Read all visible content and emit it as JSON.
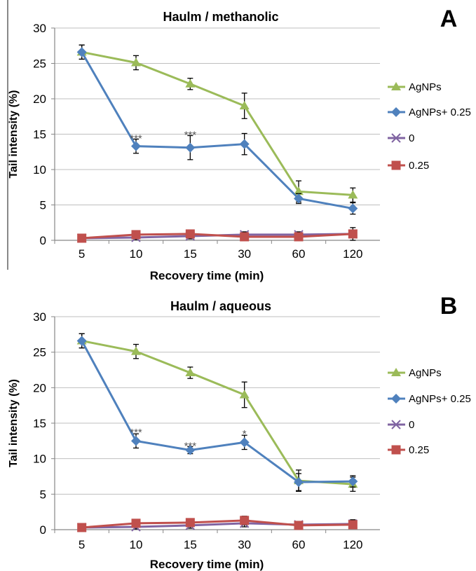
{
  "chart_data": [
    {
      "type": "line",
      "panel_letter": "A",
      "title": "Haulm / methanolic",
      "xlabel": "Recovery time (min)",
      "ylabel": "Tail intensity (%)",
      "categories": [
        "5",
        "10",
        "15",
        "30",
        "60",
        "120"
      ],
      "yticks": [
        "0",
        "5",
        "10",
        "15",
        "20",
        "25",
        "30"
      ],
      "ylim": [
        0,
        30
      ],
      "grid": true,
      "legend_position": "right",
      "series": [
        {
          "name": "AgNPs",
          "color": "#9bbb59",
          "marker": "triangle",
          "values": [
            26.6,
            25.1,
            22.1,
            19.0,
            6.9,
            6.4
          ],
          "errors": [
            1.0,
            1.0,
            0.8,
            1.8,
            1.5,
            1.0
          ]
        },
        {
          "name": "AgNPs+ 0.25",
          "color": "#4f81bd",
          "marker": "diamond",
          "values": [
            26.6,
            13.3,
            13.1,
            13.6,
            5.9,
            4.5
          ],
          "errors": [
            1.0,
            1.0,
            1.7,
            1.5,
            0.7,
            0.8
          ]
        },
        {
          "name": "0",
          "color": "#8064a2",
          "marker": "x",
          "values": [
            0.3,
            0.4,
            0.6,
            0.8,
            0.8,
            0.9
          ],
          "errors": [
            0.2,
            0.3,
            0.4,
            0.4,
            0.4,
            0.5
          ]
        },
        {
          "name": "0.25",
          "color": "#c0504d",
          "marker": "square",
          "values": [
            0.3,
            0.8,
            0.9,
            0.5,
            0.5,
            0.9
          ],
          "errors": [
            0.2,
            0.4,
            0.5,
            0.6,
            0.4,
            0.9
          ]
        }
      ],
      "annotations": [
        {
          "text": "***",
          "x": "10",
          "y": 14.3
        },
        {
          "text": "***",
          "x": "15",
          "y": 14.8
        }
      ]
    },
    {
      "type": "line",
      "panel_letter": "B",
      "title": "Haulm / aqueous",
      "xlabel": "Recovery time (min)",
      "ylabel": "Tail intensity (%)",
      "categories": [
        "5",
        "10",
        "15",
        "30",
        "60",
        "120"
      ],
      "yticks": [
        "0",
        "5",
        "10",
        "15",
        "20",
        "25",
        "30"
      ],
      "ylim": [
        0,
        30
      ],
      "grid": true,
      "legend_position": "right",
      "series": [
        {
          "name": "AgNPs",
          "color": "#9bbb59",
          "marker": "triangle",
          "values": [
            26.6,
            25.1,
            22.1,
            19.0,
            6.9,
            6.4
          ],
          "errors": [
            1.0,
            1.0,
            0.8,
            1.8,
            1.5,
            1.0
          ]
        },
        {
          "name": "AgNPs+ 0.25",
          "color": "#4f81bd",
          "marker": "diamond",
          "values": [
            26.6,
            12.5,
            11.2,
            12.3,
            6.7,
            6.8
          ],
          "errors": [
            1.0,
            1.0,
            0.5,
            1.0,
            1.2,
            0.8
          ]
        },
        {
          "name": "0",
          "color": "#8064a2",
          "marker": "x",
          "values": [
            0.3,
            0.4,
            0.6,
            0.9,
            0.7,
            0.8
          ],
          "errors": [
            0.2,
            0.3,
            0.4,
            0.5,
            0.4,
            0.6
          ]
        },
        {
          "name": "0.25",
          "color": "#c0504d",
          "marker": "square",
          "values": [
            0.3,
            0.9,
            1.0,
            1.3,
            0.6,
            0.7
          ],
          "errors": [
            0.2,
            0.4,
            0.5,
            0.6,
            0.4,
            0.5
          ]
        }
      ],
      "annotations": [
        {
          "text": "***",
          "x": "10",
          "y": 13.6
        },
        {
          "text": "***",
          "x": "15",
          "y": 11.7
        },
        {
          "text": "*",
          "x": "30",
          "y": 13.4
        }
      ]
    }
  ]
}
